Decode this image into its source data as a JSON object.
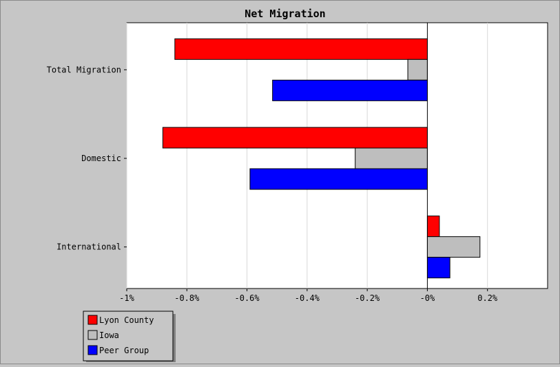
{
  "chart_data": {
    "type": "bar",
    "orientation": "horizontal",
    "title": "Net Migration",
    "categories": [
      "Total Migration",
      "Domestic",
      "International"
    ],
    "series": [
      {
        "name": "Lyon County",
        "color": "#ff0000",
        "values": [
          -0.84,
          -0.88,
          0.04
        ]
      },
      {
        "name": "Iowa",
        "color": "#bebebe",
        "values": [
          -0.065,
          -0.24,
          0.175
        ]
      },
      {
        "name": "Peer Group",
        "color": "#0000ff",
        "values": [
          -0.515,
          -0.59,
          0.075
        ]
      }
    ],
    "xlim": [
      -1.0,
      0.4
    ],
    "xticks": [
      -1.0,
      -0.8,
      -0.6,
      -0.4,
      -0.2,
      0.0,
      0.2
    ],
    "xtick_labels": [
      "-1%",
      "-0.8%",
      "-0.6%",
      "-0.4%",
      "-0.2%",
      "-0%",
      "0.2%"
    ],
    "grid": true,
    "legend_position": "bottom-left"
  }
}
